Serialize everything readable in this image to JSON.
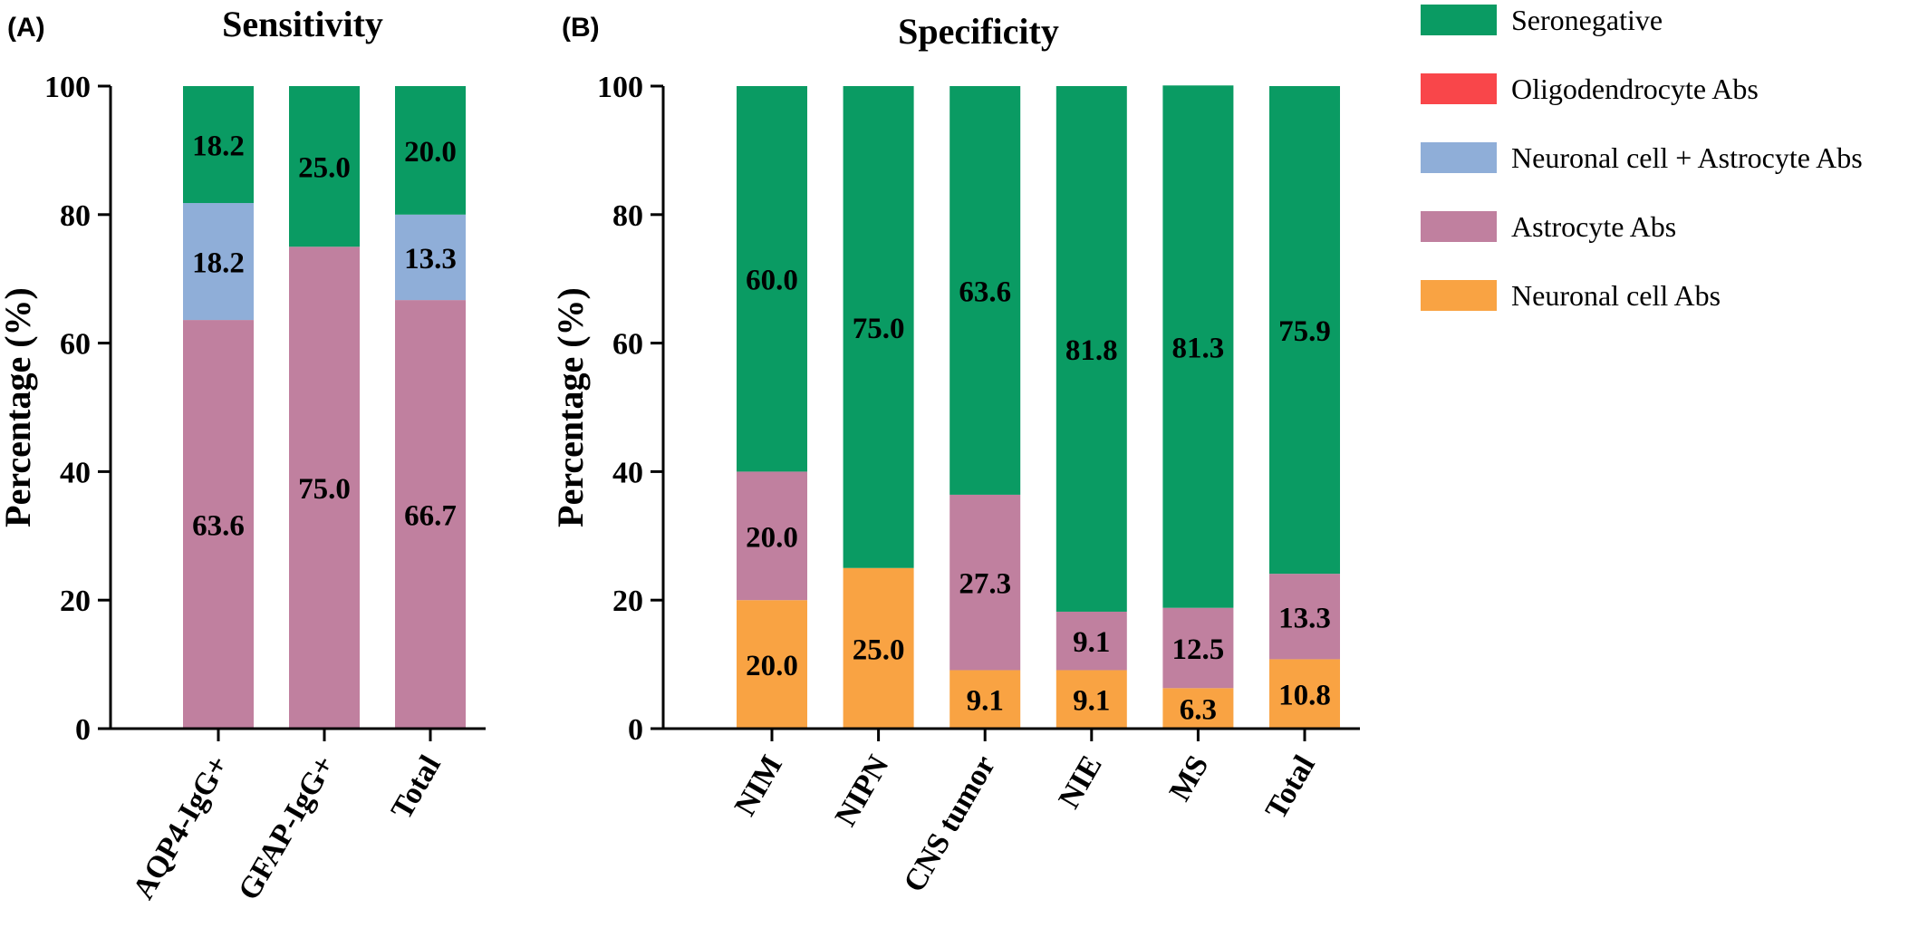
{
  "legend": [
    {
      "name": "Seronegative",
      "color": "#0A9B63"
    },
    {
      "name": "Oligodendrocyte Abs",
      "color": "#F9464A"
    },
    {
      "name": "Neuronal cell + Astrocyte Abs",
      "color": "#8FAED8"
    },
    {
      "name": "Astrocyte Abs",
      "color": "#C0809F"
    },
    {
      "name": "Neuronal cell Abs",
      "color": "#F9A343"
    }
  ],
  "chart_data": [
    {
      "type": "bar",
      "stacked": true,
      "panel_label": "(A)",
      "title": "Sensitivity",
      "ylabel": "Percentage (%)",
      "ylim": [
        0,
        100
      ],
      "yticks": [
        "0",
        "20",
        "40",
        "60",
        "80",
        "100"
      ],
      "categories": [
        "AQP4-IgG+",
        "GFAP-IgG+",
        "Total"
      ],
      "series": [
        {
          "name": "Neuronal cell Abs",
          "values": [
            0,
            0,
            0
          ],
          "labels": [
            "",
            "",
            ""
          ]
        },
        {
          "name": "Astrocyte Abs",
          "values": [
            63.6,
            75.0,
            66.7
          ],
          "labels": [
            "63.6",
            "75.0",
            "66.7"
          ]
        },
        {
          "name": "Neuronal cell + Astrocyte Abs",
          "values": [
            18.2,
            0,
            13.3
          ],
          "labels": [
            "18.2",
            "",
            "13.3"
          ]
        },
        {
          "name": "Oligodendrocyte Abs",
          "values": [
            0,
            0,
            0
          ],
          "labels": [
            "",
            "",
            ""
          ]
        },
        {
          "name": "Seronegative",
          "values": [
            18.2,
            25.0,
            20.0
          ],
          "labels": [
            "18.2",
            "25.0",
            "20.0"
          ]
        }
      ]
    },
    {
      "type": "bar",
      "stacked": true,
      "panel_label": "(B)",
      "title": "Specificity",
      "ylabel": "Percentage (%)",
      "ylim": [
        0,
        100
      ],
      "yticks": [
        "0",
        "20",
        "40",
        "60",
        "80",
        "100"
      ],
      "categories": [
        "NIM",
        "NIPN",
        "CNS tumor",
        "NIE",
        "MS",
        "Total"
      ],
      "series": [
        {
          "name": "Neuronal cell Abs",
          "values": [
            20.0,
            25.0,
            9.1,
            9.1,
            6.3,
            10.8
          ],
          "labels": [
            "20.0",
            "25.0",
            "9.1",
            "9.1",
            "6.3",
            "10.8"
          ]
        },
        {
          "name": "Astrocyte Abs",
          "values": [
            20.0,
            0,
            27.3,
            9.1,
            12.5,
            13.3
          ],
          "labels": [
            "20.0",
            "",
            "27.3",
            "9.1",
            "12.5",
            "13.3"
          ]
        },
        {
          "name": "Neuronal cell + Astrocyte Abs",
          "values": [
            0,
            0,
            0,
            0,
            0,
            0
          ],
          "labels": [
            "",
            "",
            "",
            "",
            "",
            ""
          ]
        },
        {
          "name": "Oligodendrocyte Abs",
          "values": [
            0,
            0,
            0,
            0,
            0,
            0
          ],
          "labels": [
            "",
            "",
            "",
            "",
            "",
            ""
          ]
        },
        {
          "name": "Seronegative",
          "values": [
            60.0,
            75.0,
            63.6,
            81.8,
            81.3,
            75.9
          ],
          "labels": [
            "60.0",
            "75.0",
            "63.6",
            "81.8",
            "81.3",
            "75.9"
          ]
        }
      ]
    }
  ]
}
